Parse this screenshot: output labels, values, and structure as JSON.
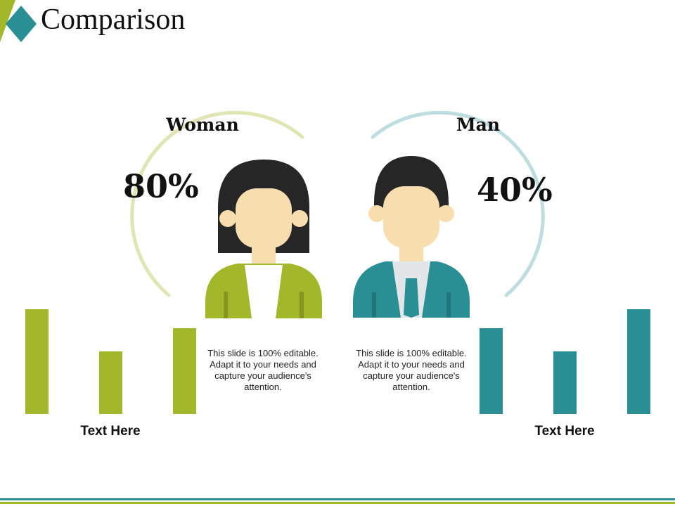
{
  "title": "Comparison",
  "colors": {
    "green": "#a2b72a",
    "teal": "#2a8f95",
    "skin": "#f8deaf",
    "hair": "#262626"
  },
  "woman": {
    "label": "Woman",
    "percent": "80%",
    "description": "This slide is 100% editable. Adapt it to your needs and capture your audience's attention."
  },
  "man": {
    "label": "Man",
    "percent": "40%",
    "description": "This slide is 100% editable. Adapt it to your needs and capture your audience's attention."
  },
  "chart_data": [
    {
      "type": "bar",
      "series": [
        {
          "values": [
            100,
            60,
            82
          ]
        }
      ],
      "color": "#a2b72a",
      "caption": "Text Here",
      "ylim": [
        0,
        100
      ]
    },
    {
      "type": "bar",
      "series": [
        {
          "values": [
            82,
            60,
            100
          ]
        }
      ],
      "color": "#2a8f95",
      "caption": "Text Here",
      "ylim": [
        0,
        100
      ]
    }
  ]
}
